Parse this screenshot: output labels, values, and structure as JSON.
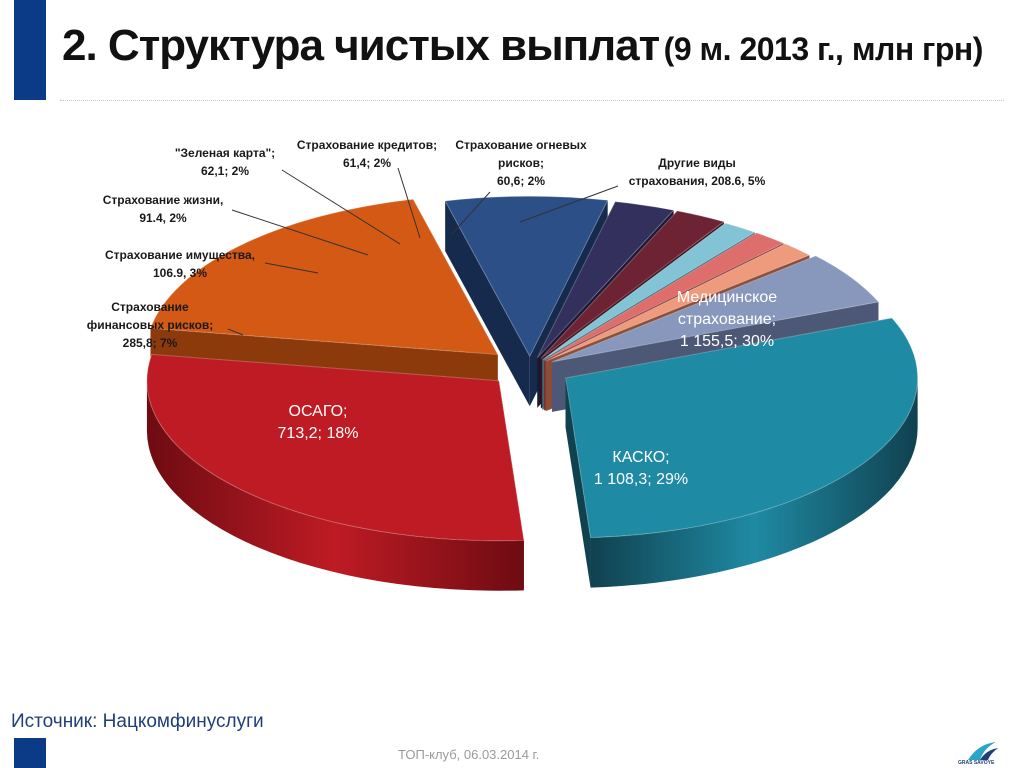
{
  "title": {
    "main": "2. Структура чистых выплат",
    "sub": "(9 м. 2013 г., млн грн)"
  },
  "source": "Источник: Нацкомфинуслуги",
  "footer": "ТОП-клуб, 06.03.2014 г.",
  "logo_text": "GRAS SAVOYE",
  "chart_data": {
    "type": "pie",
    "title": "",
    "units": "млн грн",
    "slices": [
      {
        "name": "Медицинское страхование",
        "value": 1155.5,
        "percent": 30,
        "label_lines": [
          "Медицинское",
          "страхование;",
          "1 155,5; 30%"
        ],
        "color": "#1f8aa3",
        "dark": "#10414f"
      },
      {
        "name": "КАСКО",
        "value": 1108.3,
        "percent": 29,
        "label_lines": [
          "КАСКО;",
          "1 108,3; 29%"
        ],
        "color": "#be1b24",
        "dark": "#6e0b12"
      },
      {
        "name": "ОСАГО",
        "value": 713.2,
        "percent": 18,
        "label_lines": [
          "ОСАГО;",
          "713,2; 18%"
        ],
        "color": "#d35914",
        "dark": "#8c3a0c"
      },
      {
        "name": "Страхование финансовых рисков",
        "value": 285.8,
        "percent": 7,
        "label_lines": [
          "Страхование",
          "финансовых рисков;",
          "285,8; 7%"
        ],
        "color": "#2c4f88",
        "dark": "#152a4c"
      },
      {
        "name": "Страхование имущества",
        "value": 106.9,
        "percent": 3,
        "label_lines": [
          "Страхование имущества,",
          "106.9, 3%"
        ],
        "color": "#34305d",
        "dark": "#1a1833"
      },
      {
        "name": "Страхование жизни",
        "value": 91.4,
        "percent": 2,
        "label_lines": [
          "Страхование жизни,",
          "91.4, 2%"
        ],
        "color": "#6e2335",
        "dark": "#3a111b"
      },
      {
        "name": "\"Зеленая карта\"",
        "value": 62.1,
        "percent": 2,
        "label_lines": [
          "\"Зеленая карта\";",
          "62,1; 2%"
        ],
        "color": "#83c3d6",
        "dark": "#3e6d7a"
      },
      {
        "name": "Страхование кредитов",
        "value": 61.4,
        "percent": 2,
        "label_lines": [
          "Страхование кредитов;",
          "61,4; 2%"
        ],
        "color": "#de6e6c",
        "dark": "#7a2f2e"
      },
      {
        "name": "Страхование огневых рисков",
        "value": 60.6,
        "percent": 2,
        "label_lines": [
          "Страхование огневых",
          "рисков;",
          "60,6; 2%"
        ],
        "color": "#ee9a7d",
        "dark": "#8c4e39"
      },
      {
        "name": "Другие виды страхования",
        "value": 208.6,
        "percent": 5,
        "label_lines": [
          "Другие виды",
          "страхования, 208.6, 5%"
        ],
        "color": "#8898bd",
        "dark": "#4d5876"
      }
    ]
  }
}
